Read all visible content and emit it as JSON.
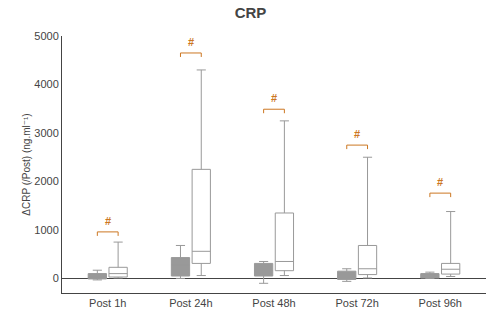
{
  "chart_data": {
    "type": "box",
    "title": "CRP",
    "ylabel": "ΔCRP (/Post) (ng.ml⁻¹)",
    "categories": [
      "Post 1h",
      "Post 24h",
      "Post 48h",
      "Post 72h",
      "Post 96h"
    ],
    "color": "#999999",
    "series": [
      {
        "color": "#999999",
        "q1": [
          -10,
          50,
          50,
          -20,
          10
        ],
        "median": [
          20,
          280,
          160,
          40,
          50
        ],
        "q3": [
          100,
          430,
          310,
          150,
          100
        ],
        "whislo": [
          -30,
          0,
          -100,
          -60,
          0
        ],
        "whishi": [
          170,
          680,
          350,
          200,
          130
        ]
      },
      {
        "color": "#ffffff",
        "q1": [
          30,
          310,
          160,
          80,
          90
        ],
        "median": [
          100,
          560,
          350,
          200,
          190
        ],
        "q3": [
          230,
          2250,
          1350,
          680,
          310
        ],
        "whislo": [
          10,
          60,
          60,
          10,
          40
        ],
        "whishi": [
          750,
          4300,
          3250,
          2500,
          1380
        ]
      }
    ],
    "annotations": [
      {
        "text": "#",
        "x": "Post 1h",
        "y": 1010,
        "bracket_y": 960,
        "color": "#cc7722"
      },
      {
        "text": "#",
        "x": "Post 24h",
        "y": 4720,
        "bracket_y": 4650,
        "color": "#cc7722"
      },
      {
        "text": "#",
        "x": "Post 48h",
        "y": 3560,
        "bracket_y": 3490,
        "color": "#cc7722"
      },
      {
        "text": "#",
        "x": "Post 72h",
        "y": 2820,
        "bracket_y": 2750,
        "color": "#cc7722"
      },
      {
        "text": "#",
        "x": "Post 96h",
        "y": 1830,
        "bracket_y": 1760,
        "color": "#cc7722"
      }
    ],
    "ylim": [
      -300,
      5000
    ],
    "yticks": [
      0,
      1000,
      2000,
      3000,
      4000,
      5000
    ],
    "grid": false
  }
}
